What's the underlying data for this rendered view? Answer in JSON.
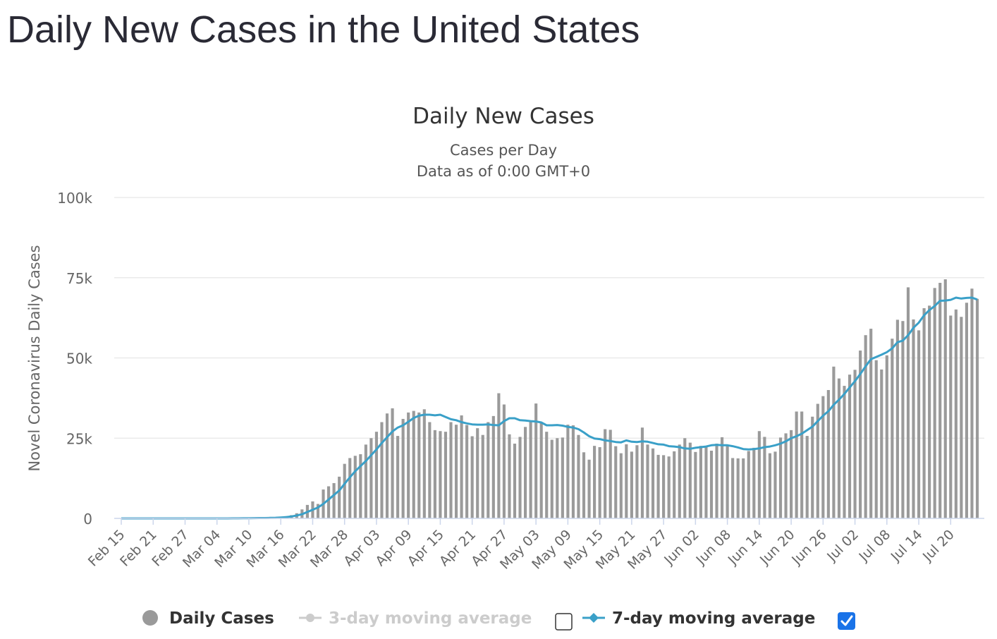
{
  "page": {
    "heading": "Daily New Cases in the United States"
  },
  "chart_data": {
    "type": "bar",
    "title": "Daily New Cases",
    "subtitle_lines": [
      "Cases per Day",
      "Data as of 0:00 GMT+0"
    ],
    "ylabel": "Novel Coronavirus Daily Cases",
    "xlabel": "",
    "ylim": [
      0,
      100000
    ],
    "y_ticks": [
      0,
      25000,
      50000,
      75000,
      100000
    ],
    "y_tick_labels": [
      "0",
      "25k",
      "50k",
      "75k",
      "100k"
    ],
    "x_start": "2020-02-15",
    "x_tick_labels": [
      "Feb 15",
      "Feb 21",
      "Feb 27",
      "Mar 04",
      "Mar 10",
      "Mar 16",
      "Mar 22",
      "Mar 28",
      "Apr 03",
      "Apr 09",
      "Apr 15",
      "Apr 21",
      "Apr 27",
      "May 03",
      "May 09",
      "May 15",
      "May 21",
      "May 27",
      "Jun 02",
      "Jun 08",
      "Jun 14",
      "Jun 20",
      "Jun 26",
      "Jul 02",
      "Jul 08",
      "Jul 14",
      "Jul 20"
    ],
    "grid": true,
    "legend_position": "bottom-center",
    "colors": {
      "bars": "#9a9a9a",
      "ma7": "#3aa0c8",
      "ma3_disabled": "#cccccc",
      "text": "#333333",
      "axis_text": "#666666"
    },
    "series": [
      {
        "name": "Daily Cases",
        "type": "bar",
        "values": [
          0,
          0,
          0,
          0,
          0,
          0,
          0,
          0,
          0,
          0,
          0,
          0,
          0,
          0,
          0,
          0,
          0,
          0,
          0,
          10,
          20,
          30,
          40,
          60,
          80,
          100,
          120,
          150,
          200,
          300,
          500,
          700,
          1000,
          1600,
          2800,
          4200,
          5300,
          4500,
          9000,
          10000,
          11000,
          13000,
          17000,
          18800,
          19500,
          20000,
          23000,
          25000,
          27000,
          30000,
          32700,
          34300,
          25700,
          31000,
          33000,
          33500,
          33000,
          34000,
          30000,
          27500,
          27200,
          27000,
          30000,
          29200,
          32100,
          29100,
          25600,
          28100,
          26000,
          30000,
          31900,
          39000,
          35500,
          26200,
          23300,
          25400,
          28500,
          30000,
          35800,
          29700,
          27000,
          24500,
          25000,
          25200,
          29200,
          29000,
          26000,
          20600,
          18300,
          22600,
          22200,
          27800,
          27600,
          22500,
          20300,
          23100,
          20800,
          22800,
          28300,
          23000,
          21800,
          19800,
          19700,
          19300,
          20900,
          23000,
          25000,
          23600,
          20700,
          22600,
          22600,
          21100,
          23300,
          25300,
          22900,
          18800,
          18700,
          18700,
          21000,
          22000,
          27200,
          25400,
          20300,
          20800,
          25200,
          26500,
          27500,
          33300,
          33300,
          25700,
          31700,
          35700,
          38100,
          40000,
          47300,
          43600,
          41300,
          44800,
          46300,
          52300,
          57100,
          59100,
          49300,
          46400,
          50800,
          56000,
          61900,
          61500,
          72000,
          62000,
          58600,
          65500,
          66300,
          71800,
          73400,
          74500,
          63200,
          65100,
          62800,
          67200,
          71600,
          68400
        ],
        "values_note_omitted": false
      },
      {
        "name": "3-day moving average",
        "enabled": false,
        "values": []
      },
      {
        "name": "7-day moving average",
        "type": "line",
        "enabled": true,
        "values": [
          0,
          0,
          0,
          0,
          0,
          0,
          0,
          0,
          0,
          0,
          0,
          0,
          0,
          0,
          0,
          0,
          0,
          0,
          0,
          0,
          10,
          20,
          30,
          40,
          60,
          80,
          100,
          120,
          150,
          200,
          280,
          400,
          600,
          900,
          1300,
          2000,
          2700,
          3400,
          4500,
          5900,
          7300,
          8700,
          10800,
          12800,
          14700,
          16300,
          17900,
          19700,
          21500,
          23500,
          25300,
          27100,
          28300,
          29000,
          30100,
          31300,
          32000,
          32300,
          32300,
          32100,
          32300,
          31600,
          30900,
          30600,
          30000,
          29600,
          29300,
          29200,
          29200,
          29300,
          29100,
          29000,
          30300,
          31200,
          31200,
          30600,
          30500,
          30300,
          30200,
          29900,
          29000,
          29000,
          29100,
          28900,
          28500,
          28300,
          27800,
          26800,
          25600,
          24900,
          24700,
          24300,
          24100,
          23800,
          23700,
          24300,
          23900,
          23800,
          24000,
          23900,
          23500,
          23100,
          23000,
          22500,
          22400,
          22200,
          21800,
          21700,
          22000,
          22200,
          22400,
          22800,
          22900,
          22800,
          22800,
          22500,
          22100,
          21600,
          21500,
          21600,
          21800,
          22200,
          22400,
          22800,
          23300,
          24000,
          25000,
          25600,
          26400,
          27500,
          28600,
          30300,
          32000,
          33400,
          35400,
          37000,
          38800,
          40800,
          42800,
          45000,
          47400,
          49600,
          50300,
          51000,
          51800,
          53000,
          54900,
          55400,
          57100,
          59400,
          61000,
          63300,
          64900,
          66200,
          67800,
          67900,
          68100,
          68800,
          68500,
          68700,
          68800,
          68200
        ]
      }
    ]
  },
  "legend": {
    "items": [
      {
        "label": "Daily Cases",
        "symbol": "circle",
        "enabled": true
      },
      {
        "label": "3-day moving average",
        "symbol": "circle-line",
        "enabled": false
      },
      {
        "label": "7-day moving average",
        "symbol": "diamond-line",
        "enabled": true
      }
    ],
    "checkbox_3day_checked": false,
    "checkbox_7day_checked": true
  }
}
